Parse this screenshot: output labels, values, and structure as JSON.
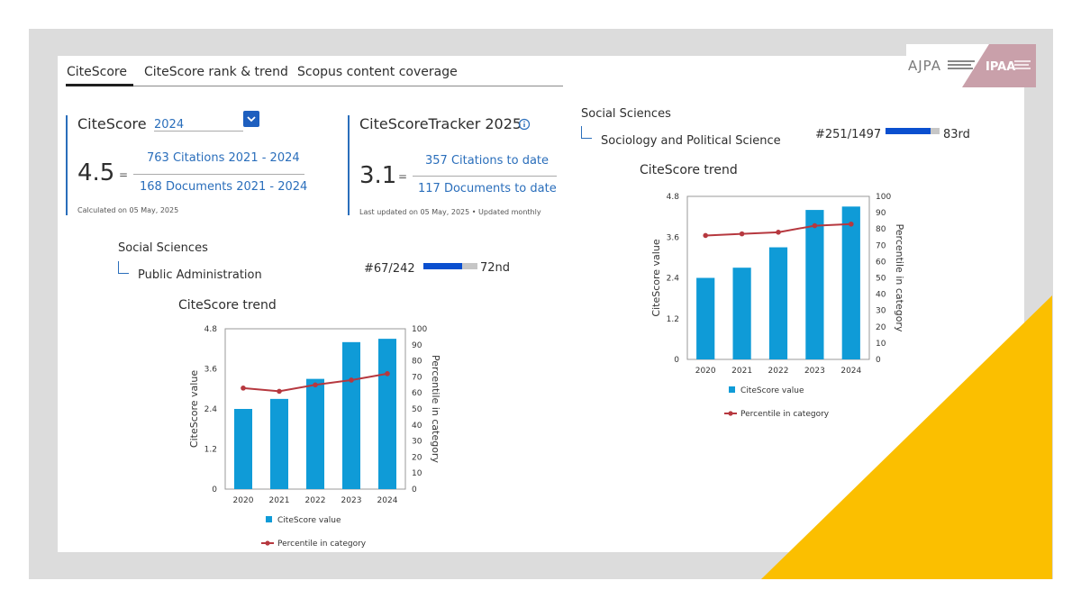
{
  "tabs": [
    {
      "label": "CiteScore",
      "active": true
    },
    {
      "label": "CiteScore rank & trend",
      "active": false
    },
    {
      "label": "Scopus content coverage",
      "active": false
    }
  ],
  "citescore": {
    "title": "CiteScore",
    "year": "2024",
    "value": "4.5",
    "equals": "=",
    "citations": "763 Citations 2021 - 2024",
    "documents": "168 Documents 2021 - 2024",
    "calculated": "Calculated on 05 May, 2025"
  },
  "tracker": {
    "title": "CiteScoreTracker 2025",
    "info_icon": "info-icon",
    "value": "3.1",
    "equals": "=",
    "citations": "357 Citations to date",
    "documents": "117 Documents to date",
    "updated": "Last updated on 05 May, 2025 • Updated monthly"
  },
  "logo": {
    "left": "AJPA",
    "right": "IPAA"
  },
  "rank_left": {
    "category": "Social Sciences",
    "subject": "Public Administration",
    "rank": "#67/242",
    "percentile_label": "72nd",
    "percentile": 72
  },
  "rank_right": {
    "category": "Social Sciences",
    "subject": "Sociology and Political Science",
    "rank": "#251/1497",
    "percentile_label": "83rd",
    "percentile": 83
  },
  "chart_data": [
    {
      "type": "bar",
      "title": "CiteScore trend",
      "categories": [
        "2020",
        "2021",
        "2022",
        "2023",
        "2024"
      ],
      "series": [
        {
          "name": "CiteScore value",
          "kind": "bar",
          "axis": "left",
          "values": [
            2.4,
            2.7,
            3.3,
            4.4,
            4.5
          ]
        },
        {
          "name": "Percentile in category",
          "kind": "line",
          "axis": "right",
          "values": [
            63,
            61,
            65,
            68,
            72
          ]
        }
      ],
      "ylabel": "CiteScore value",
      "y2label": "Percentile in category",
      "ylim": [
        0,
        4.8
      ],
      "y2lim": [
        0,
        100
      ],
      "yticks": [
        "0",
        "1.2",
        "2.4",
        "3.6",
        "4.8"
      ],
      "y2ticks": [
        "0",
        "10",
        "20",
        "30",
        "40",
        "50",
        "60",
        "70",
        "80",
        "90",
        "100"
      ],
      "bar_color": "#0f9bd7",
      "line_color": "#b6383f"
    },
    {
      "type": "bar",
      "title": "CiteScore trend",
      "categories": [
        "2020",
        "2021",
        "2022",
        "2023",
        "2024"
      ],
      "series": [
        {
          "name": "CiteScore value",
          "kind": "bar",
          "axis": "left",
          "values": [
            2.4,
            2.7,
            3.3,
            4.4,
            4.5
          ]
        },
        {
          "name": "Percentile in category",
          "kind": "line",
          "axis": "right",
          "values": [
            76,
            77,
            78,
            82,
            83
          ]
        }
      ],
      "ylabel": "CiteScore value",
      "y2label": "Percentile in category",
      "ylim": [
        0,
        4.8
      ],
      "y2lim": [
        0,
        100
      ],
      "yticks": [
        "0",
        "1.2",
        "2.4",
        "3.6",
        "4.8"
      ],
      "y2ticks": [
        "0",
        "10",
        "20",
        "30",
        "40",
        "50",
        "60",
        "70",
        "80",
        "90",
        "100"
      ],
      "bar_color": "#0f9bd7",
      "line_color": "#b6383f"
    }
  ],
  "colors": {
    "accent": "#2a6ebb",
    "rank_bar": "#0a4fcf",
    "yellow": "#fbbf00",
    "frame": "#dcdcdc"
  }
}
